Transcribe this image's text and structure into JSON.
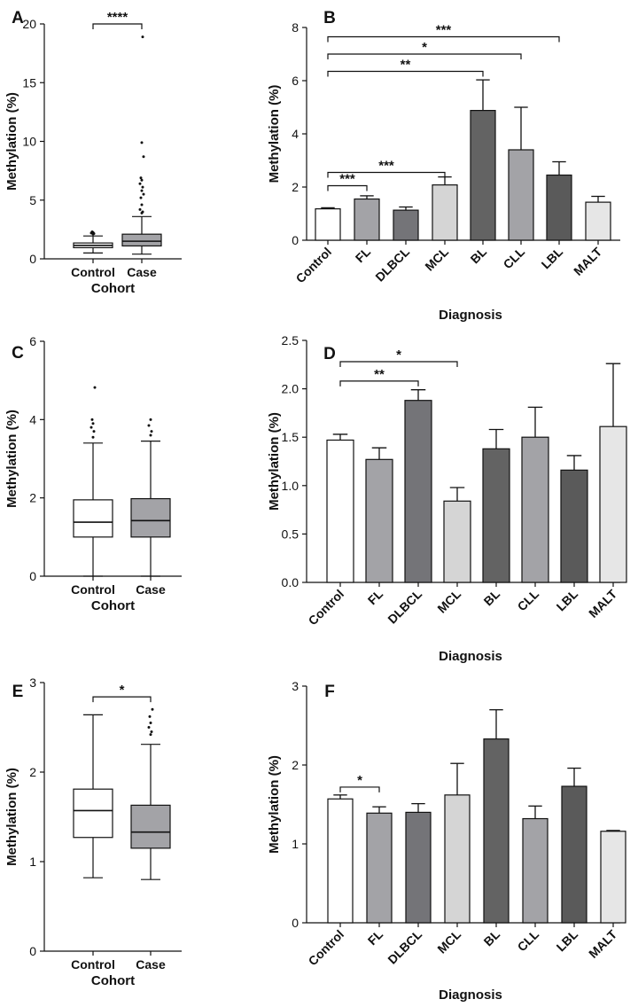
{
  "chart_data": [
    {
      "panel": "A",
      "type": "box",
      "title": "",
      "xlabel": "Cohort",
      "ylabel": "Methylation (%)",
      "ylim": [
        0,
        20
      ],
      "yticks": [
        0,
        5,
        10,
        15,
        20
      ],
      "categories": [
        "Control",
        "Case"
      ],
      "boxes": [
        {
          "name": "Control",
          "fill": "#ffffff",
          "min": 0.5,
          "q1": 0.95,
          "median": 1.15,
          "q3": 1.35,
          "max": 1.95,
          "outliers": [
            2.1,
            2.15,
            2.2,
            2.25,
            2.3
          ]
        },
        {
          "name": "Case",
          "fill": "#a3a3a7",
          "min": 0.4,
          "q1": 1.1,
          "median": 1.5,
          "q3": 2.1,
          "max": 3.6,
          "outliers": [
            3.9,
            4.0,
            4.2,
            4.6,
            5.2,
            5.5,
            5.8,
            6.1,
            6.4,
            6.7,
            6.9,
            8.7,
            9.9,
            18.9
          ]
        }
      ],
      "comparisons": [
        {
          "from": "Control",
          "to": "Case",
          "label": "****",
          "y": 20
        }
      ]
    },
    {
      "panel": "B",
      "type": "bar",
      "title": "",
      "xlabel": "Diagnosis",
      "ylabel": "Methylation (%)",
      "ylim": [
        0,
        8
      ],
      "yticks": [
        0,
        2,
        4,
        6,
        8
      ],
      "categories": [
        "Control",
        "FL",
        "DLBCL",
        "MCL",
        "BL",
        "CLL",
        "LBL",
        "MALT"
      ],
      "values": [
        1.18,
        1.55,
        1.13,
        2.08,
        4.88,
        3.4,
        2.45,
        1.43
      ],
      "errors": [
        0.04,
        0.12,
        0.12,
        0.3,
        1.15,
        1.6,
        0.5,
        0.22
      ],
      "colors": [
        "#ffffff",
        "#a3a3a7",
        "#747478",
        "#d5d5d5",
        "#636363",
        "#a3a3a7",
        "#5a5a5a",
        "#e6e6e6"
      ],
      "comparisons": [
        {
          "from": "Control",
          "to": "FL",
          "label": "***",
          "y": 2.05
        },
        {
          "from": "Control",
          "to": "MCL",
          "label": "***",
          "y": 2.55
        },
        {
          "from": "Control",
          "to": "BL",
          "label": "**",
          "y": 6.35
        },
        {
          "from": "Control",
          "to": "CLL",
          "label": "*",
          "y": 7.0
        },
        {
          "from": "Control",
          "to": "LBL",
          "label": "***",
          "y": 7.65
        }
      ]
    },
    {
      "panel": "C",
      "type": "box",
      "title": "",
      "xlabel": "Cohort",
      "ylabel": "Methylation (%)",
      "ylim": [
        0,
        6
      ],
      "yticks": [
        0,
        2,
        4,
        6
      ],
      "categories": [
        "Control",
        "Case"
      ],
      "boxes": [
        {
          "name": "Control",
          "fill": "#ffffff",
          "min": 0.0,
          "q1": 1.0,
          "median": 1.38,
          "q3": 1.95,
          "max": 3.4,
          "outliers": [
            3.55,
            3.7,
            3.8,
            3.9,
            4.0,
            4.82
          ]
        },
        {
          "name": "Case",
          "fill": "#a3a3a7",
          "min": 0.0,
          "q1": 1.0,
          "median": 1.42,
          "q3": 1.98,
          "max": 3.45,
          "outliers": [
            3.6,
            3.7,
            3.85,
            4.0
          ]
        }
      ],
      "comparisons": []
    },
    {
      "panel": "D",
      "type": "bar",
      "title": "",
      "xlabel": "Diagnosis",
      "ylabel": "Methylation (%)",
      "ylim": [
        0,
        2.5
      ],
      "yticks": [
        0.0,
        0.5,
        1.0,
        1.5,
        2.0,
        2.5
      ],
      "categories": [
        "Control",
        "FL",
        "DLBCL",
        "MCL",
        "BL",
        "CLL",
        "LBL",
        "MALT"
      ],
      "values": [
        1.47,
        1.27,
        1.88,
        0.84,
        1.38,
        1.5,
        1.16,
        1.61
      ],
      "errors": [
        0.06,
        0.12,
        0.11,
        0.14,
        0.2,
        0.31,
        0.15,
        0.65
      ],
      "colors": [
        "#ffffff",
        "#a3a3a7",
        "#747478",
        "#d5d5d5",
        "#636363",
        "#a3a3a7",
        "#5a5a5a",
        "#e6e6e6"
      ],
      "comparisons": [
        {
          "from": "Control",
          "to": "DLBCL",
          "label": "**",
          "y": 2.08
        },
        {
          "from": "Control",
          "to": "MCL",
          "label": "*",
          "y": 2.28
        }
      ]
    },
    {
      "panel": "E",
      "type": "box",
      "title": "",
      "xlabel": "Cohort",
      "ylabel": "Methylation (%)",
      "ylim": [
        0,
        3
      ],
      "yticks": [
        0,
        1,
        2,
        3
      ],
      "categories": [
        "Control",
        "Case"
      ],
      "boxes": [
        {
          "name": "Control",
          "fill": "#ffffff",
          "min": 0.82,
          "q1": 1.27,
          "median": 1.57,
          "q3": 1.81,
          "max": 2.64,
          "outliers": []
        },
        {
          "name": "Case",
          "fill": "#a3a3a7",
          "min": 0.8,
          "q1": 1.15,
          "median": 1.33,
          "q3": 1.63,
          "max": 2.31,
          "outliers": [
            2.42,
            2.45,
            2.5,
            2.55,
            2.62,
            2.7
          ]
        }
      ],
      "comparisons": [
        {
          "from": "Control",
          "to": "Case",
          "label": "*",
          "y": 2.84
        }
      ]
    },
    {
      "panel": "F",
      "type": "bar",
      "title": "",
      "xlabel": "Diagnosis",
      "ylabel": "Methylation (%)",
      "ylim": [
        0,
        3
      ],
      "yticks": [
        0,
        1,
        2,
        3
      ],
      "categories": [
        "Control",
        "FL",
        "DLBCL",
        "MCL",
        "BL",
        "CLL",
        "LBL",
        "MALT"
      ],
      "values": [
        1.57,
        1.39,
        1.4,
        1.62,
        2.33,
        1.32,
        1.73,
        1.16
      ],
      "errors": [
        0.05,
        0.08,
        0.11,
        0.4,
        0.37,
        0.16,
        0.23,
        0.01
      ],
      "colors": [
        "#ffffff",
        "#a3a3a7",
        "#747478",
        "#d5d5d5",
        "#636363",
        "#a3a3a7",
        "#5a5a5a",
        "#e6e6e6"
      ],
      "comparisons": [
        {
          "from": "Control",
          "to": "FL",
          "label": "*",
          "y": 1.72
        }
      ]
    }
  ]
}
